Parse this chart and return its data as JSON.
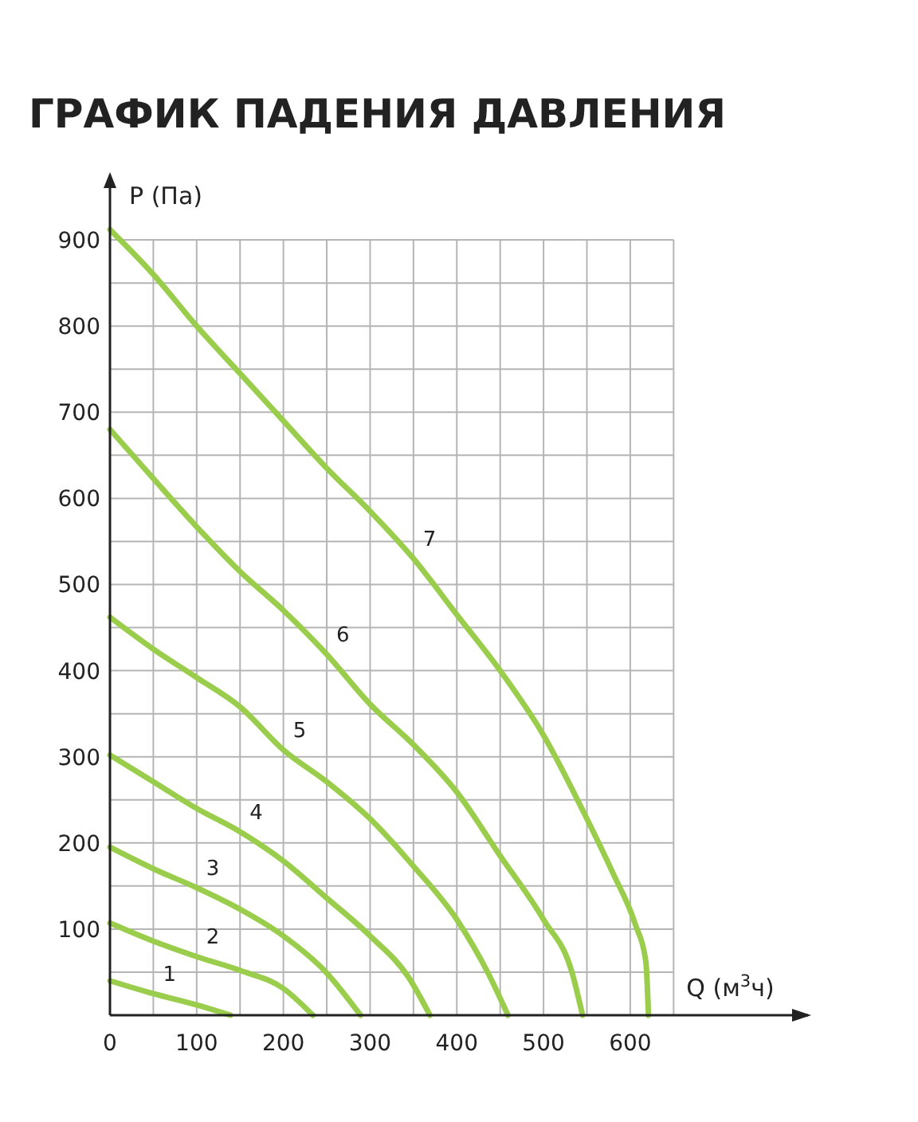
{
  "chart_data": {
    "type": "line",
    "title": "ГРАФИК ПАДЕНИЯ ДАВЛЕНИЯ",
    "xlabel": "Q (м$^{3}$ч)",
    "ylabel": "P (Па)",
    "xlim": [
      0,
      805
    ],
    "ylim": [
      0,
      975
    ],
    "xticks": [
      0,
      {
        "value": 50,
        "label": null
      },
      100,
      {
        "value": 150,
        "label": null
      },
      200,
      {
        "value": 250,
        "label": null
      },
      300,
      {
        "value": 350,
        "label": null
      },
      400,
      {
        "value": 450,
        "label": null
      },
      500,
      {
        "value": 550,
        "label": null
      },
      600,
      {
        "value": 650,
        "label": null
      }
    ],
    "yticks": [
      {
        "value": 0,
        "label": null
      },
      {
        "value": 50,
        "label": null
      },
      100,
      {
        "value": 150,
        "label": null
      },
      200,
      {
        "value": 250,
        "label": null
      },
      300,
      {
        "value": 350,
        "label": null
      },
      400,
      {
        "value": 450,
        "label": null
      },
      500,
      {
        "value": 550,
        "label": null
      },
      600,
      {
        "value": 650,
        "label": null
      },
      700,
      {
        "value": 750,
        "label": null
      },
      800,
      {
        "value": 850,
        "label": null
      },
      900
    ],
    "grid": true,
    "marker": "none",
    "line_style": "solid",
    "series": [
      {
        "name": "1",
        "color": "#9acd4c",
        "x": [
          0,
          50,
          100,
          139
        ],
        "values": [
          40,
          25,
          12,
          0
        ]
      },
      {
        "name": "2",
        "color": "#9acd4c",
        "x": [
          0,
          50,
          100,
          150,
          200,
          234
        ],
        "values": [
          107,
          86,
          68,
          52,
          31,
          0
        ]
      },
      {
        "name": "3",
        "color": "#9acd4c",
        "x": [
          0,
          50,
          100,
          150,
          200,
          250,
          289
        ],
        "values": [
          195,
          170,
          148,
          123,
          92,
          49,
          0
        ]
      },
      {
        "name": "4",
        "color": "#9acd4c",
        "x": [
          0,
          50,
          100,
          150,
          200,
          250,
          300,
          345,
          369
        ],
        "values": [
          302,
          271,
          240,
          213,
          179,
          136,
          92,
          43,
          0
        ]
      },
      {
        "name": "5",
        "color": "#9acd4c",
        "x": [
          0,
          50,
          100,
          150,
          200,
          250,
          300,
          350,
          400,
          436,
          459
        ],
        "values": [
          462,
          425,
          392,
          358,
          308,
          271,
          228,
          173,
          111,
          49,
          0
        ]
      },
      {
        "name": "6",
        "color": "#9acd4c",
        "x": [
          0,
          50,
          100,
          150,
          200,
          250,
          300,
          350,
          400,
          450,
          500,
          533,
          545
        ],
        "values": [
          680,
          623,
          567,
          515,
          470,
          419,
          361,
          314,
          259,
          185,
          111,
          49,
          0
        ]
      },
      {
        "name": "7",
        "color": "#9acd4c",
        "x": [
          0,
          50,
          100,
          150,
          200,
          250,
          300,
          350,
          400,
          450,
          500,
          550,
          580,
          606,
          618,
          621
        ],
        "values": [
          912,
          860,
          800,
          745,
          690,
          635,
          585,
          530,
          465,
          400,
          325,
          228,
          165,
          105,
          62,
          0
        ]
      }
    ]
  }
}
